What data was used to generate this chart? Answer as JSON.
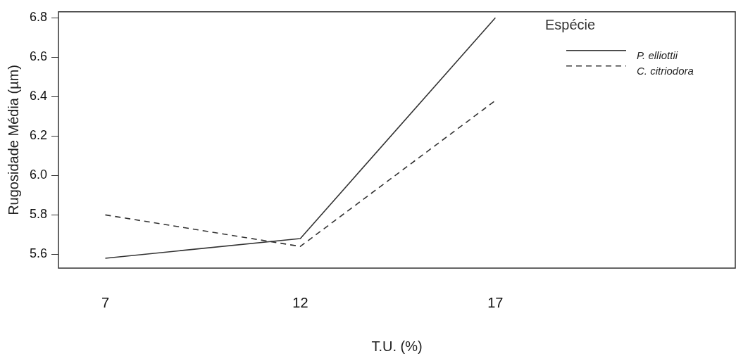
{
  "chart_data": {
    "type": "line",
    "xlabel": "T.U. (%)",
    "ylabel": "Rugosidade Média (µm)",
    "legend_title": "Espécie",
    "categories": [
      "7",
      "12",
      "17"
    ],
    "series": [
      {
        "name": "P. elliottii",
        "color": "#333333",
        "line_style": "solid",
        "values": [
          5.58,
          5.68,
          6.8
        ]
      },
      {
        "name": "C. citriodora",
        "color": "#333333",
        "line_style": "dashed",
        "values": [
          5.8,
          5.64,
          6.38
        ]
      }
    ],
    "ylim": [
      5.53,
      6.83
    ],
    "yticks": [
      5.6,
      5.8,
      {
        "value": 6,
        "label": "6.0"
      },
      6.2,
      6.4,
      6.6,
      6.8
    ],
    "grid": false,
    "legend": "top right",
    "marker": "none"
  }
}
